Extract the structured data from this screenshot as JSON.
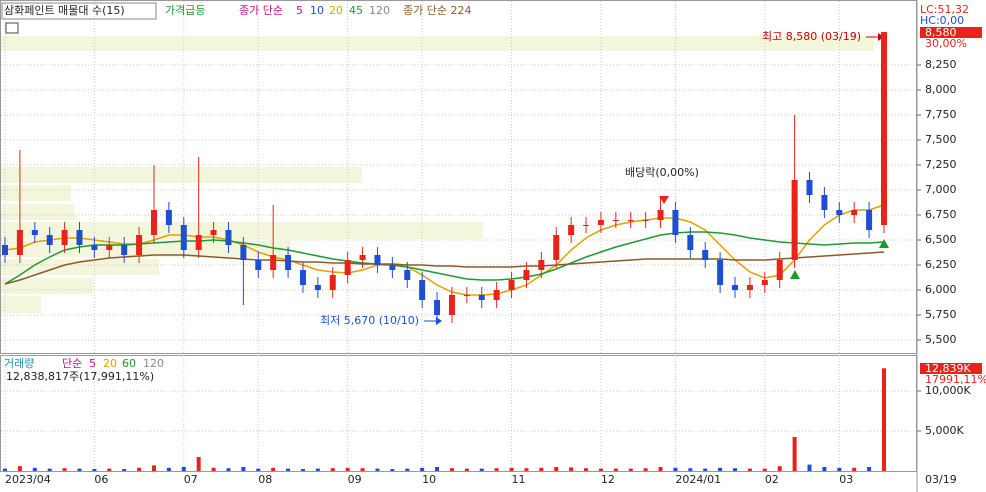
{
  "header": {
    "title": "삼화페인트 매물대 수(15)",
    "signal": "가격급등",
    "ma_label": "종가 단순",
    "ma_periods": [
      "5",
      "10",
      "20",
      "45",
      "120"
    ],
    "ma_long": "종가 단순 224",
    "volume_label": "거래량",
    "volume_ma_label": "단순",
    "volume_ma_periods": [
      "5",
      "20",
      "60",
      "120"
    ],
    "volume_info": "12,838,817주(17,991,11%)"
  },
  "right_info": {
    "lc": "LC:51,32",
    "hc": "HC:0,00",
    "rate": "30,00%",
    "volume_rate": "17991,11%",
    "date": "03/19"
  },
  "chart_data": [
    {
      "type": "candlestick",
      "up_color": "#e8231a",
      "down_color": "#1e4fd0",
      "open": [
        6450,
        6350,
        6600,
        6550,
        6450,
        6600,
        6450,
        6400,
        6450,
        6350,
        6550,
        6800,
        6650,
        6400,
        6550,
        6600,
        6450,
        6300,
        6200,
        6350,
        6200,
        6050,
        6000,
        6150,
        6300,
        6350,
        6250,
        6200,
        6100,
        5900,
        5750,
        5950,
        5950,
        5900,
        6000,
        6100,
        6200,
        6300,
        6550,
        6650,
        6650,
        6700,
        6700,
        6700,
        6700,
        6800,
        6550,
        6400,
        6300,
        6050,
        6000,
        6050,
        6100,
        6300,
        7100,
        6950,
        6800,
        6750,
        6800,
        6650
      ],
      "high": [
        6530,
        7400,
        6680,
        6630,
        6680,
        6680,
        6530,
        6530,
        6530,
        6630,
        7250,
        6880,
        6730,
        7330,
        6680,
        6680,
        6530,
        6380,
        6850,
        6430,
        6280,
        6130,
        6230,
        6380,
        6430,
        6430,
        6330,
        6280,
        6180,
        5980,
        6030,
        6030,
        6030,
        6080,
        6180,
        6280,
        6380,
        6630,
        6730,
        6730,
        6780,
        6780,
        6780,
        6780,
        6920,
        6880,
        6630,
        6480,
        6380,
        6130,
        6130,
        6180,
        6380,
        7750,
        7180,
        7030,
        6880,
        6880,
        6880,
        8580
      ],
      "low": [
        6270,
        6270,
        6470,
        6370,
        6370,
        6370,
        6320,
        6320,
        6270,
        6270,
        6470,
        6570,
        6320,
        6320,
        6470,
        6370,
        5850,
        6120,
        6120,
        6120,
        5970,
        5920,
        5920,
        6070,
        6220,
        6170,
        6120,
        6020,
        5820,
        5670,
        5670,
        5870,
        5820,
        5820,
        5920,
        6020,
        6120,
        6220,
        6470,
        6570,
        6570,
        6620,
        6620,
        6620,
        6620,
        6470,
        6320,
        6220,
        5970,
        5920,
        5920,
        5970,
        6020,
        6220,
        6870,
        6720,
        6670,
        6670,
        6520,
        6570
      ],
      "close": [
        6350,
        6600,
        6550,
        6450,
        6600,
        6450,
        6400,
        6450,
        6350,
        6550,
        6800,
        6650,
        6400,
        6550,
        6600,
        6450,
        6300,
        6200,
        6350,
        6200,
        6050,
        6000,
        6150,
        6300,
        6350,
        6250,
        6200,
        6100,
        5900,
        5750,
        5950,
        5950,
        5900,
        6000,
        6100,
        6200,
        6300,
        6550,
        6650,
        6650,
        6700,
        6700,
        6700,
        6700,
        6800,
        6550,
        6400,
        6300,
        6050,
        6000,
        6050,
        6100,
        6300,
        7100,
        6950,
        6800,
        6750,
        6800,
        6600,
        8580
      ],
      "ma_lines": [
        {
          "color": "#e0a000",
          "values": [
            6400,
            6420,
            6480,
            6500,
            6520,
            6520,
            6500,
            6480,
            6460,
            6460,
            6500,
            6550,
            6550,
            6530,
            6530,
            6500,
            6450,
            6380,
            6330,
            6300,
            6250,
            6200,
            6180,
            6170,
            6200,
            6250,
            6250,
            6230,
            6150,
            6050,
            5980,
            5950,
            5950,
            5960,
            6000,
            6050,
            6150,
            6250,
            6400,
            6520,
            6600,
            6650,
            6680,
            6700,
            6720,
            6720,
            6680,
            6600,
            6450,
            6300,
            6180,
            6120,
            6150,
            6300,
            6500,
            6650,
            6750,
            6800,
            6800,
            6850
          ]
        },
        {
          "color": "#1f9a2e",
          "values": [
            6060,
            6150,
            6250,
            6330,
            6400,
            6430,
            6450,
            6450,
            6450,
            6460,
            6470,
            6480,
            6490,
            6490,
            6500,
            6490,
            6470,
            6450,
            6420,
            6400,
            6370,
            6340,
            6310,
            6290,
            6270,
            6260,
            6250,
            6230,
            6200,
            6170,
            6140,
            6110,
            6100,
            6100,
            6110,
            6130,
            6160,
            6210,
            6270,
            6330,
            6380,
            6430,
            6470,
            6510,
            6550,
            6570,
            6580,
            6580,
            6570,
            6550,
            6520,
            6500,
            6480,
            6470,
            6460,
            6450,
            6460,
            6470,
            6470,
            6480
          ]
        },
        {
          "color": "#8b5a2b",
          "values": [
            6060,
            6100,
            6150,
            6200,
            6250,
            6280,
            6300,
            6320,
            6330,
            6340,
            6350,
            6350,
            6350,
            6340,
            6330,
            6320,
            6310,
            6300,
            6300,
            6290,
            6280,
            6280,
            6270,
            6270,
            6260,
            6260,
            6260,
            6250,
            6250,
            6240,
            6240,
            6230,
            6230,
            6230,
            6230,
            6240,
            6240,
            6250,
            6260,
            6270,
            6280,
            6290,
            6300,
            6310,
            6310,
            6310,
            6310,
            6310,
            6310,
            6300,
            6300,
            6300,
            6310,
            6320,
            6330,
            6340,
            6350,
            6360,
            6370,
            6380
          ]
        }
      ],
      "ylim": [
        5380,
        8860
      ],
      "yticks": [
        {
          "value": 5500,
          "label": "5,500"
        },
        {
          "value": 5750,
          "label": "5,750"
        },
        {
          "value": 6000,
          "label": "6,000"
        },
        {
          "value": 6250,
          "label": "6,250"
        },
        {
          "value": 6500,
          "label": "6,500"
        },
        {
          "value": 6750,
          "label": "6,750"
        },
        {
          "value": 7000,
          "label": "7,000"
        },
        {
          "value": 7250,
          "label": "7,250"
        },
        {
          "value": 7500,
          "label": "7,500"
        },
        {
          "value": 7750,
          "label": "7,750"
        },
        {
          "value": 8000,
          "label": "8,000"
        },
        {
          "value": 8250,
          "label": "8,250"
        }
      ],
      "last_label": "8,580",
      "annotations": {
        "high": "최고 8,580 (03/19)",
        "low": "최저 5,670 (10/10)",
        "dividend": "배당락(0,00%)"
      }
    },
    {
      "type": "bar",
      "color_up": "#e8231a",
      "color_down": "#1e4fd0",
      "categories": [
        "2023/04",
        null,
        null,
        null,
        null,
        null,
        "06",
        null,
        null,
        null,
        null,
        null,
        "07",
        null,
        null,
        null,
        null,
        "08",
        null,
        null,
        null,
        null,
        null,
        "09",
        null,
        null,
        null,
        null,
        "10",
        null,
        null,
        null,
        null,
        null,
        "11",
        null,
        null,
        null,
        null,
        null,
        "12",
        null,
        null,
        null,
        null,
        "2024/01",
        null,
        null,
        null,
        null,
        null,
        "02",
        null,
        null,
        null,
        null,
        "03",
        null,
        null,
        null
      ],
      "values": [
        300,
        600,
        400,
        300,
        350,
        300,
        250,
        300,
        250,
        400,
        700,
        400,
        500,
        1750,
        400,
        350,
        500,
        300,
        400,
        300,
        250,
        300,
        350,
        400,
        350,
        300,
        250,
        300,
        400,
        500,
        350,
        300,
        300,
        350,
        400,
        350,
        400,
        500,
        450,
        350,
        300,
        300,
        300,
        350,
        500,
        400,
        350,
        300,
        400,
        350,
        300,
        300,
        600,
        4250,
        800,
        500,
        400,
        400,
        500,
        12839
      ],
      "ylim": [
        0,
        14250
      ],
      "yticks": [
        {
          "value": 5000,
          "label": "5,000K"
        },
        {
          "value": 10000,
          "label": "10,000K"
        }
      ],
      "last_label": "12,839K"
    }
  ]
}
